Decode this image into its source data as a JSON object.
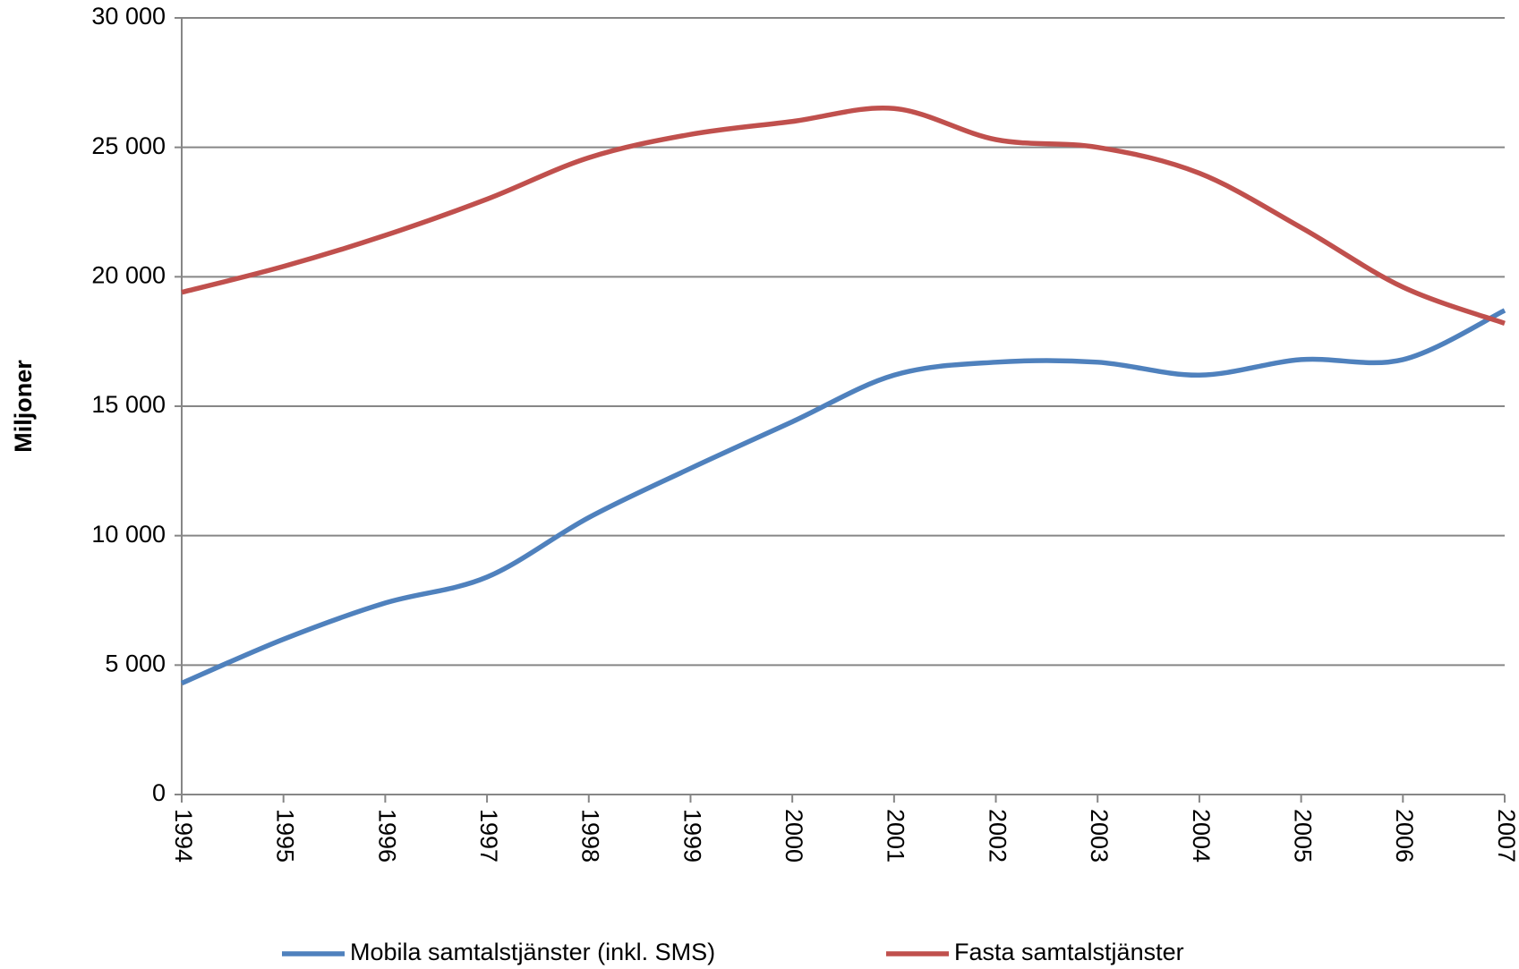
{
  "chart_data": {
    "type": "line",
    "y_label": "Miljoner",
    "categories": [
      "1994",
      "1995",
      "1996",
      "1997",
      "1998",
      "1999",
      "2000",
      "2001",
      "2002",
      "2003",
      "2004",
      "2005",
      "2006",
      "2007"
    ],
    "series": [
      {
        "name": "Mobila samtalstjänster (inkl. SMS)",
        "color": "#4f81bd",
        "values": [
          4300,
          6000,
          7400,
          8400,
          10700,
          12600,
          14400,
          16200,
          16700,
          16700,
          16200,
          16800,
          16800,
          18700
        ]
      },
      {
        "name": "Fasta samtalstjänster",
        "color": "#c0504d",
        "values": [
          19400,
          20400,
          21600,
          23000,
          24600,
          25500,
          26000,
          26500,
          25300,
          25000,
          24000,
          21900,
          19600,
          18200
        ]
      }
    ],
    "ylim": [
      0,
      30000
    ],
    "yticks": [
      0,
      {
        "value": 5000,
        "label": "5 000"
      },
      {
        "value": 10000,
        "label": "10 000"
      },
      {
        "value": 15000,
        "label": "15 000"
      },
      {
        "value": 20000,
        "label": "20 000"
      },
      {
        "value": 25000,
        "label": "25 000"
      },
      {
        "value": 30000,
        "label": "30 000"
      }
    ],
    "grid": true,
    "legend": "bottom"
  }
}
